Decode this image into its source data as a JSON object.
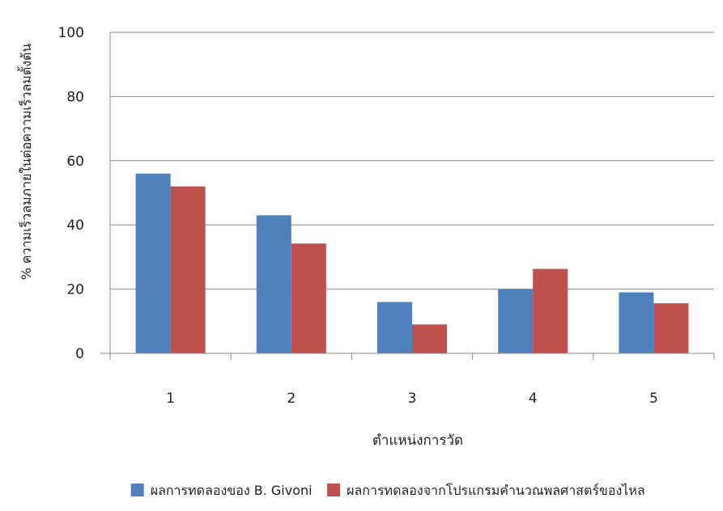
{
  "chart_data": {
    "type": "bar",
    "categories": [
      "1",
      "2",
      "3",
      "4",
      "5"
    ],
    "series": [
      {
        "name": "ผลการทดลองของ B. Givoni",
        "color": "#4F81BD",
        "values": [
          56,
          43,
          16,
          20,
          19
        ]
      },
      {
        "name": "ผลการทดลองจากโปรแกรมคำนวณพลศาสตร์ของไหล",
        "color": "#C0504D",
        "values": [
          52,
          34.2,
          9,
          26.3,
          15.6
        ]
      }
    ],
    "xlabel": "ตำแหน่งการวัด",
    "ylabel": "% ความเร็วลมภายในต่อความเร็วลมตั้งต้น",
    "ylim": [
      0,
      100
    ],
    "yticks": [
      0,
      20,
      40,
      60,
      80,
      100
    ],
    "grid": true,
    "legend_position": "bottom"
  }
}
